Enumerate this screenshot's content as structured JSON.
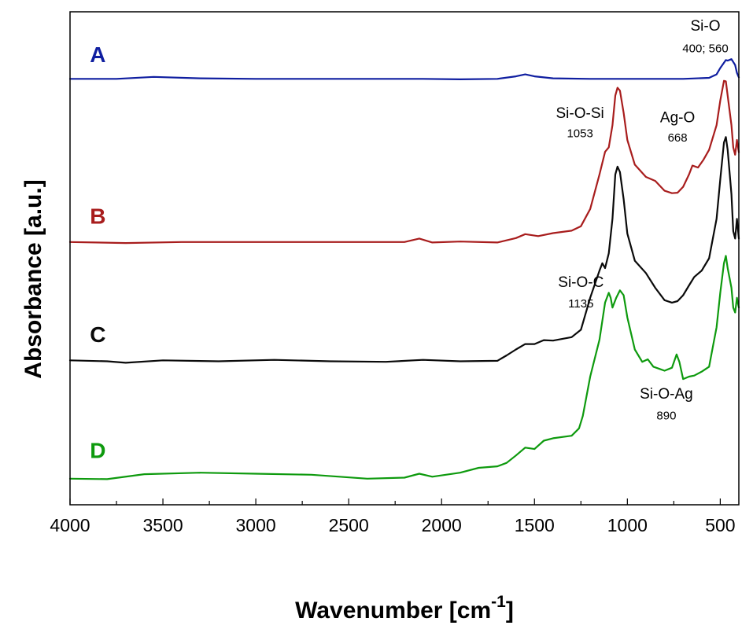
{
  "chart_data": {
    "type": "line",
    "xlabel": "Wavenumber [cm",
    "xlabel_sup": "-1",
    "xlabel_suffix": "]",
    "ylabel": "Absorbance [a.u.]",
    "xlim": [
      4000,
      400
    ],
    "ylim": [
      0,
      100
    ],
    "xticks": [
      4000,
      3500,
      3000,
      2500,
      2000,
      1500,
      1000,
      500
    ],
    "x_minor_step": 250,
    "grid": false,
    "legend": "none",
    "series": [
      {
        "name": "A",
        "color": "#0f1ea0",
        "points": [
          [
            4000,
            86.4
          ],
          [
            3750,
            86.4
          ],
          [
            3550,
            86.8
          ],
          [
            3300,
            86.5
          ],
          [
            3000,
            86.4
          ],
          [
            2700,
            86.4
          ],
          [
            2400,
            86.4
          ],
          [
            2100,
            86.4
          ],
          [
            1900,
            86.3
          ],
          [
            1700,
            86.4
          ],
          [
            1600,
            86.9
          ],
          [
            1550,
            87.3
          ],
          [
            1500,
            86.9
          ],
          [
            1400,
            86.5
          ],
          [
            1200,
            86.4
          ],
          [
            900,
            86.4
          ],
          [
            700,
            86.4
          ],
          [
            560,
            86.6
          ],
          [
            520,
            87.3
          ],
          [
            500,
            88.6
          ],
          [
            470,
            90.2
          ],
          [
            460,
            90.1
          ],
          [
            440,
            90.4
          ],
          [
            420,
            89.2
          ],
          [
            410,
            87.6
          ],
          [
            400,
            86.7
          ]
        ]
      },
      {
        "name": "B",
        "color": "#a81d1d",
        "points": [
          [
            4000,
            53.3
          ],
          [
            3700,
            53.1
          ],
          [
            3400,
            53.3
          ],
          [
            3000,
            53.3
          ],
          [
            2600,
            53.3
          ],
          [
            2200,
            53.3
          ],
          [
            2120,
            54.0
          ],
          [
            2050,
            53.2
          ],
          [
            1900,
            53.4
          ],
          [
            1700,
            53.2
          ],
          [
            1600,
            54.1
          ],
          [
            1550,
            54.9
          ],
          [
            1480,
            54.5
          ],
          [
            1400,
            55.1
          ],
          [
            1300,
            55.6
          ],
          [
            1250,
            56.5
          ],
          [
            1200,
            60.0
          ],
          [
            1150,
            67.0
          ],
          [
            1120,
            71.6
          ],
          [
            1100,
            72.5
          ],
          [
            1080,
            77.0
          ],
          [
            1065,
            83.0
          ],
          [
            1053,
            84.6
          ],
          [
            1040,
            84.0
          ],
          [
            1020,
            79.5
          ],
          [
            1000,
            74.0
          ],
          [
            960,
            69.0
          ],
          [
            900,
            66.5
          ],
          [
            850,
            65.7
          ],
          [
            800,
            63.7
          ],
          [
            760,
            63.2
          ],
          [
            730,
            63.3
          ],
          [
            700,
            64.5
          ],
          [
            668,
            67.0
          ],
          [
            650,
            68.8
          ],
          [
            620,
            68.4
          ],
          [
            590,
            70.0
          ],
          [
            560,
            72.0
          ],
          [
            520,
            77.0
          ],
          [
            500,
            82.0
          ],
          [
            480,
            86.0
          ],
          [
            470,
            85.9
          ],
          [
            460,
            83.0
          ],
          [
            440,
            77.0
          ],
          [
            430,
            72.5
          ],
          [
            420,
            71.0
          ],
          [
            410,
            74.0
          ],
          [
            400,
            71.5
          ]
        ]
      },
      {
        "name": "C",
        "color": "#0a0a0a",
        "points": [
          [
            4000,
            29.3
          ],
          [
            3800,
            29.1
          ],
          [
            3700,
            28.8
          ],
          [
            3500,
            29.3
          ],
          [
            3200,
            29.1
          ],
          [
            2900,
            29.4
          ],
          [
            2600,
            29.1
          ],
          [
            2300,
            29.0
          ],
          [
            2100,
            29.4
          ],
          [
            1900,
            29.1
          ],
          [
            1700,
            29.2
          ],
          [
            1650,
            30.3
          ],
          [
            1600,
            31.5
          ],
          [
            1550,
            32.6
          ],
          [
            1500,
            32.6
          ],
          [
            1450,
            33.4
          ],
          [
            1400,
            33.3
          ],
          [
            1300,
            34.0
          ],
          [
            1250,
            35.5
          ],
          [
            1200,
            42.0
          ],
          [
            1150,
            47.5
          ],
          [
            1135,
            49.0
          ],
          [
            1120,
            48.0
          ],
          [
            1100,
            51.0
          ],
          [
            1080,
            58.0
          ],
          [
            1065,
            67.0
          ],
          [
            1053,
            68.6
          ],
          [
            1040,
            67.5
          ],
          [
            1020,
            62.0
          ],
          [
            1000,
            55.0
          ],
          [
            960,
            49.5
          ],
          [
            900,
            47.0
          ],
          [
            850,
            44.0
          ],
          [
            800,
            41.5
          ],
          [
            760,
            41.0
          ],
          [
            730,
            41.3
          ],
          [
            700,
            42.5
          ],
          [
            668,
            44.5
          ],
          [
            640,
            46.2
          ],
          [
            600,
            47.5
          ],
          [
            560,
            50.0
          ],
          [
            520,
            58.0
          ],
          [
            500,
            66.0
          ],
          [
            480,
            73.5
          ],
          [
            470,
            74.6
          ],
          [
            460,
            72.0
          ],
          [
            440,
            63.0
          ],
          [
            430,
            55.5
          ],
          [
            420,
            54.0
          ],
          [
            410,
            58.0
          ],
          [
            400,
            54.0
          ]
        ]
      },
      {
        "name": "D",
        "color": "#0e9a0e",
        "points": [
          [
            4000,
            5.3
          ],
          [
            3800,
            5.2
          ],
          [
            3600,
            6.2
          ],
          [
            3300,
            6.5
          ],
          [
            3000,
            6.3
          ],
          [
            2700,
            6.1
          ],
          [
            2400,
            5.3
          ],
          [
            2200,
            5.5
          ],
          [
            2120,
            6.3
          ],
          [
            2050,
            5.7
          ],
          [
            1900,
            6.5
          ],
          [
            1800,
            7.5
          ],
          [
            1700,
            7.8
          ],
          [
            1650,
            8.5
          ],
          [
            1600,
            10.0
          ],
          [
            1550,
            11.6
          ],
          [
            1500,
            11.3
          ],
          [
            1450,
            13.0
          ],
          [
            1400,
            13.5
          ],
          [
            1300,
            14.0
          ],
          [
            1260,
            15.5
          ],
          [
            1240,
            18.0
          ],
          [
            1200,
            26.0
          ],
          [
            1150,
            33.5
          ],
          [
            1120,
            41.0
          ],
          [
            1100,
            43.0
          ],
          [
            1090,
            42.0
          ],
          [
            1080,
            40.0
          ],
          [
            1060,
            42.0
          ],
          [
            1040,
            43.5
          ],
          [
            1020,
            42.5
          ],
          [
            1000,
            38.0
          ],
          [
            960,
            31.5
          ],
          [
            920,
            29.0
          ],
          [
            890,
            29.5
          ],
          [
            860,
            28.0
          ],
          [
            830,
            27.6
          ],
          [
            800,
            27.2
          ],
          [
            760,
            27.8
          ],
          [
            735,
            30.5
          ],
          [
            720,
            29.0
          ],
          [
            700,
            25.5
          ],
          [
            668,
            26.0
          ],
          [
            640,
            26.2
          ],
          [
            600,
            27.0
          ],
          [
            560,
            28.0
          ],
          [
            540,
            32.0
          ],
          [
            520,
            36.0
          ],
          [
            500,
            43.0
          ],
          [
            480,
            49.0
          ],
          [
            470,
            50.5
          ],
          [
            460,
            48.0
          ],
          [
            440,
            44.0
          ],
          [
            430,
            40.0
          ],
          [
            420,
            39.0
          ],
          [
            410,
            42.0
          ],
          [
            400,
            40.0
          ]
        ]
      }
    ],
    "series_labels": [
      {
        "text": "A",
        "color": "#0f1ea0",
        "x": 3850,
        "y": 89.8
      },
      {
        "text": "B",
        "color": "#a81d1d",
        "x": 3850,
        "y": 57.0
      },
      {
        "text": "C",
        "color": "#0a0a0a",
        "x": 3850,
        "y": 33.0
      },
      {
        "text": "D",
        "color": "#0e9a0e",
        "x": 3850,
        "y": 9.5
      }
    ],
    "annotations": [
      {
        "name": "Si-O",
        "value": "400; 560",
        "x": 580,
        "y_name": 96.2,
        "y_value": 91.8
      },
      {
        "name": "Si-O-Si",
        "value": "1053",
        "x": 1255,
        "y_name": 78.5,
        "y_value": 74.6
      },
      {
        "name": "Ag-O",
        "value": "668",
        "x": 730,
        "y_name": 77.6,
        "y_value": 73.7
      },
      {
        "name": "Si-O-C",
        "value": "1135",
        "x": 1250,
        "y_name": 44.2,
        "y_value": 40.0
      },
      {
        "name": "Si-O-Ag",
        "value": "890",
        "x": 790,
        "y_name": 21.5,
        "y_value": 17.3
      }
    ]
  }
}
